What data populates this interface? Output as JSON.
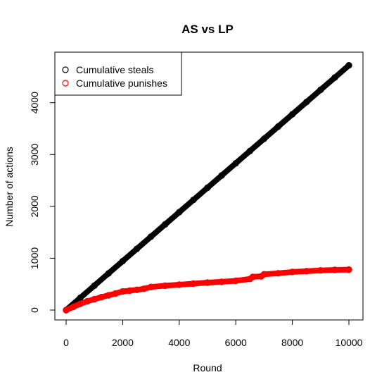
{
  "chart_data": {
    "type": "scatter",
    "title": "AS vs LP",
    "xlabel": "Round",
    "ylabel": "Number of actions",
    "xlim": [
      0,
      10000
    ],
    "ylim": [
      0,
      4730
    ],
    "x_ticks": [
      0,
      2000,
      4000,
      6000,
      8000,
      10000
    ],
    "y_ticks": [
      0,
      1000,
      2000,
      3000,
      4000
    ],
    "x_tick_labels": [
      "0",
      "2000",
      "4000",
      "6000",
      "8000",
      "10000"
    ],
    "y_tick_labels": [
      "0",
      "1000",
      "2000",
      "3000",
      "4000"
    ],
    "grid": false,
    "legend_position": "top-left",
    "legend": [
      "Cumulative steals",
      "Cumulative punishes"
    ],
    "series": [
      {
        "name": "Cumulative steals",
        "color": "#000000",
        "x": [
          0,
          500,
          1000,
          1500,
          2000,
          2500,
          3000,
          3500,
          4000,
          4500,
          5000,
          5500,
          6000,
          6500,
          7000,
          7500,
          8000,
          8500,
          9000,
          9500,
          10000
        ],
        "y": [
          0,
          236,
          472,
          708,
          944,
          1180,
          1416,
          1652,
          1888,
          2124,
          2360,
          2596,
          2832,
          3068,
          3304,
          3540,
          3776,
          4012,
          4248,
          4484,
          4720
        ]
      },
      {
        "name": "Cumulative punishes",
        "color": "#ff0000",
        "x": [
          0,
          250,
          500,
          750,
          1000,
          1250,
          1500,
          1750,
          2000,
          2250,
          2500,
          2750,
          3000,
          3500,
          4000,
          4500,
          5000,
          5500,
          6000,
          6500,
          6600,
          6900,
          7000,
          7500,
          8000,
          8500,
          9000,
          9500,
          10000
        ],
        "y": [
          0,
          60,
          120,
          170,
          210,
          250,
          285,
          320,
          360,
          375,
          390,
          410,
          445,
          470,
          490,
          510,
          530,
          545,
          565,
          600,
          640,
          650,
          690,
          710,
          735,
          750,
          765,
          775,
          780
        ]
      }
    ]
  }
}
